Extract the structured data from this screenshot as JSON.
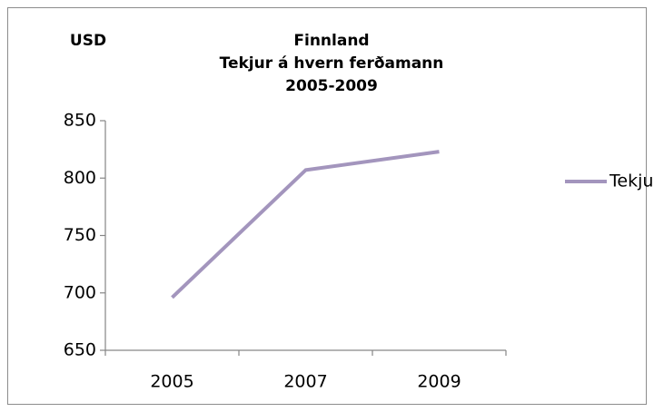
{
  "chart_data": {
    "type": "line",
    "title": [
      "Finnland",
      "Tekjur á hvern ferðamann",
      "2005-2009"
    ],
    "ylabel": "USD",
    "categories": [
      "2005",
      "2007",
      "2009"
    ],
    "series": [
      {
        "name": "Tekjur",
        "color": "#a395bd",
        "values": [
          696,
          807,
          823
        ]
      }
    ],
    "ylim": [
      650,
      850
    ],
    "yticks": [
      650,
      700,
      750,
      800,
      850
    ],
    "grid": false,
    "legend": "right"
  }
}
